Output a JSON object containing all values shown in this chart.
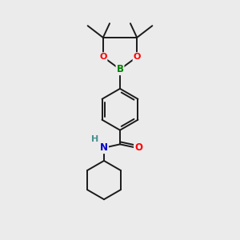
{
  "bg_color": "#ebebeb",
  "bond_color": "#1a1a1a",
  "bond_width": 1.4,
  "atom_colors": {
    "B": "#008000",
    "O": "#ff0000",
    "N": "#0000cc",
    "H": "#4a9090",
    "C": "#1a1a1a"
  },
  "figsize": [
    3.0,
    3.0
  ],
  "dpi": 100
}
